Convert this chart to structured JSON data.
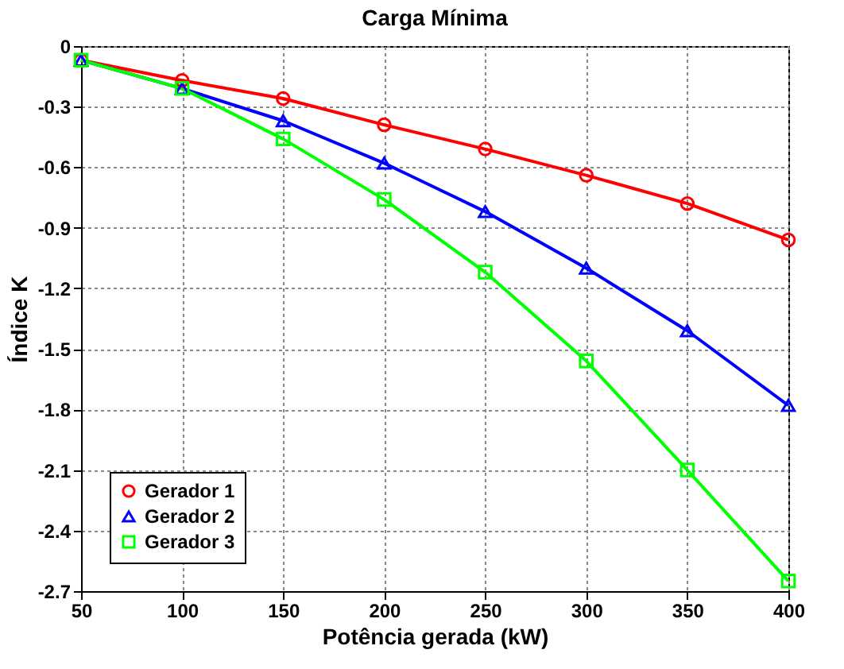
{
  "chart_data": {
    "type": "line",
    "title": "Carga Mínima",
    "xlabel": "Potência gerada (kW)",
    "ylabel": "Índice K",
    "x": [
      50,
      100,
      150,
      200,
      250,
      300,
      350,
      400
    ],
    "series": [
      {
        "name": "Gerador 1",
        "color": "#ff0000",
        "marker": "circle",
        "values": [
          -0.07,
          -0.17,
          -0.26,
          -0.39,
          -0.51,
          -0.64,
          -0.78,
          -0.96
        ]
      },
      {
        "name": "Gerador 2",
        "color": "#0000ff",
        "marker": "triangle",
        "values": [
          -0.07,
          -0.21,
          -0.37,
          -0.58,
          -0.82,
          -1.1,
          -1.41,
          -1.78
        ]
      },
      {
        "name": "Gerador 3",
        "color": "#00ff00",
        "marker": "square",
        "values": [
          -0.07,
          -0.21,
          -0.46,
          -0.76,
          -1.12,
          -1.56,
          -2.1,
          -2.65
        ]
      }
    ],
    "xlim": [
      50,
      400
    ],
    "xticks": [
      50,
      100,
      150,
      200,
      250,
      300,
      350,
      400
    ],
    "ylim": [
      -2.7,
      0
    ],
    "yticks": [
      {
        "value": 0,
        "label": "0"
      },
      {
        "value": -0.3,
        "label": "-0.3"
      },
      {
        "value": -0.6,
        "label": "-0.6"
      },
      {
        "value": -0.9,
        "label": "-0.9"
      },
      {
        "value": -1.2,
        "label": "-1.2"
      },
      {
        "value": -1.5,
        "label": "-1.5"
      },
      {
        "value": -1.8,
        "label": "-1.8"
      },
      {
        "value": -2.1,
        "label": "-2.1"
      },
      {
        "value": -2.4,
        "label": "-2.4"
      },
      {
        "value": -2.7,
        "label": "-2.7"
      }
    ],
    "grid": true,
    "legend": "bottom left",
    "line_style": "solid"
  }
}
